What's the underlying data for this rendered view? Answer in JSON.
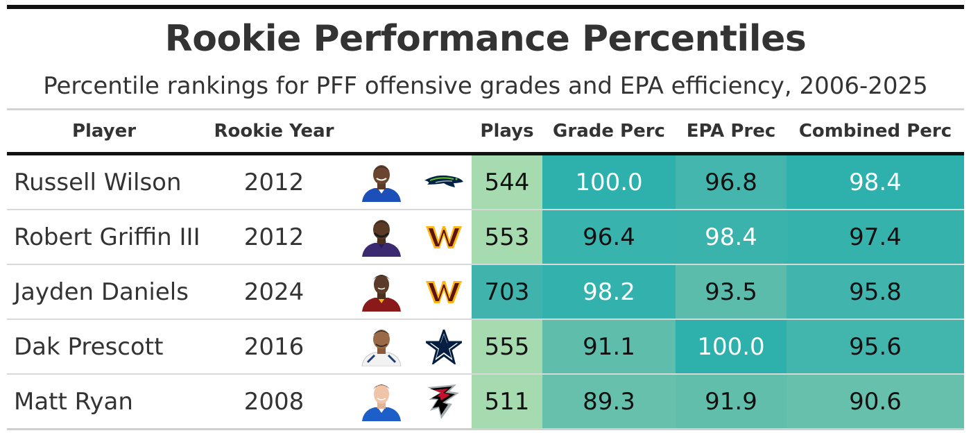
{
  "title": "Rookie Performance Percentiles",
  "subtitle": "Percentile rankings for PFF offensive grades and EPA efficiency, 2006-2025",
  "columns": {
    "player": "Player",
    "year": "Rookie Year",
    "headshot": "",
    "team": "",
    "plays": "Plays",
    "grade": "Grade Perc",
    "epa": "EPA Prec",
    "combined": "Combined Perc"
  },
  "colors": {
    "plays_light": "#a6dbb0",
    "teal_dark": "#2eb0ac",
    "teal_mid": "#45b6ad",
    "teal_light": "#67c0ab"
  },
  "rows": [
    {
      "player": "Russell Wilson",
      "year": "2012",
      "headshot_icon": "player-headshot-icon",
      "team_icon": "seahawks-logo-icon",
      "plays": "544",
      "grade": "100.0",
      "epa": "96.8",
      "combined": "98.4"
    },
    {
      "player": "Robert Griffin III",
      "year": "2012",
      "headshot_icon": "player-headshot-icon",
      "team_icon": "commanders-logo-icon",
      "plays": "553",
      "grade": "96.4",
      "epa": "98.4",
      "combined": "97.4"
    },
    {
      "player": "Jayden Daniels",
      "year": "2024",
      "headshot_icon": "player-headshot-icon",
      "team_icon": "commanders-logo-icon",
      "plays": "703",
      "grade": "98.2",
      "epa": "93.5",
      "combined": "95.8"
    },
    {
      "player": "Dak Prescott",
      "year": "2016",
      "headshot_icon": "player-headshot-icon",
      "team_icon": "cowboys-logo-icon",
      "plays": "555",
      "grade": "91.1",
      "epa": "100.0",
      "combined": "95.6"
    },
    {
      "player": "Matt Ryan",
      "year": "2008",
      "headshot_icon": "player-headshot-icon",
      "team_icon": "falcons-logo-icon",
      "plays": "511",
      "grade": "89.3",
      "epa": "91.9",
      "combined": "90.6"
    }
  ],
  "chart_data": {
    "type": "table",
    "title": "Rookie Performance Percentiles",
    "subtitle": "Percentile rankings for PFF offensive grades and EPA efficiency, 2006-2025",
    "columns": [
      "Player",
      "Rookie Year",
      "Plays",
      "Grade Perc",
      "EPA Prec",
      "Combined Perc"
    ],
    "rows": [
      [
        "Russell Wilson",
        2012,
        544,
        100.0,
        96.8,
        98.4
      ],
      [
        "Robert Griffin III",
        2012,
        553,
        96.4,
        98.4,
        97.4
      ],
      [
        "Jayden Daniels",
        2024,
        703,
        98.2,
        93.5,
        95.8
      ],
      [
        "Dak Prescott",
        2016,
        555,
        91.1,
        100.0,
        95.6
      ],
      [
        "Matt Ryan",
        2008,
        511,
        89.3,
        91.9,
        90.6
      ]
    ]
  }
}
